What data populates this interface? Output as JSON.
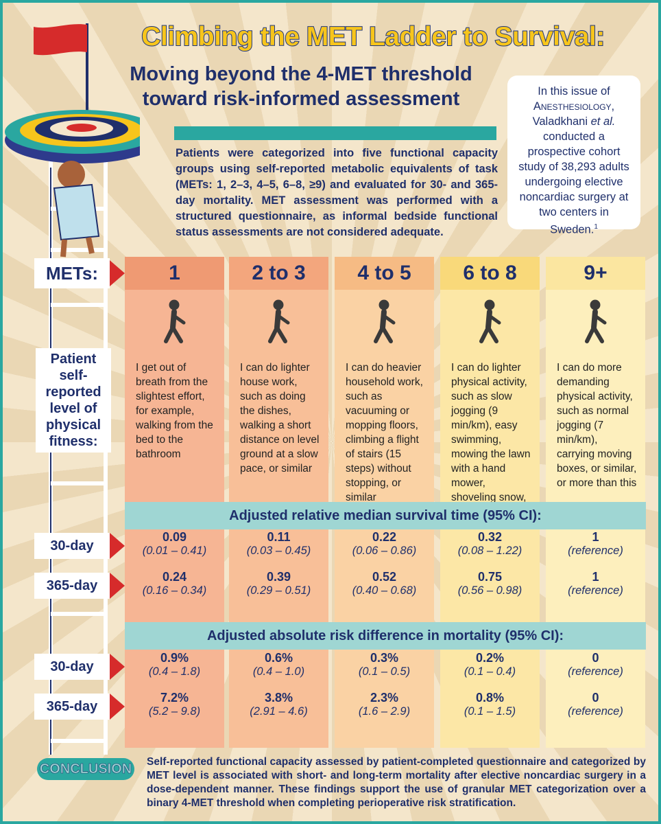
{
  "header": {
    "title": "Climbing the MET Ladder to Survival:",
    "subtitle": [
      "Moving beyond the 4-MET threshold",
      "toward risk-informed assessment"
    ]
  },
  "sidebar": {
    "parts": [
      "In this issue of ",
      "Anesthesiology",
      ", Valadkhani ",
      "et al.",
      " conducted a prospective cohort study of 38,293 adults undergoing elective noncardiac surgery at two centers in Sweden.",
      "1"
    ]
  },
  "intro": "Patients were categorized into five functional capacity groups using self-reported metabolic equivalents of task (METs: 1, 2–3, 4–5, 6–8, ≥9) and evaluated for 30- and 365-day mortality. MET assessment was performed with a structured questionnaire, as informal bedside functional status assessments are not considered adequate.",
  "row_labels": {
    "mets": "METs:",
    "fitness": "Patient self-reported level of physical fitness:"
  },
  "columns": [
    {
      "mets": "1",
      "description": "I get out of breath from the slightest effort, for example, walking from the bed to the bathroom"
    },
    {
      "mets": "2 to 3",
      "description": "I can do lighter house work, such as doing the dishes, walking a short distance on level ground at a slow pace, or similar"
    },
    {
      "mets": "4 to 5",
      "description": "I can do heavier household work, such as vacuuming or mopping floors, climbing a flight of stairs (15 steps) without stopping, or similar"
    },
    {
      "mets": "6 to 8",
      "description": "I can do lighter physical activity, such as slow jogging (9 min/km), easy swimming, mowing the lawn with a hand mower, shoveling snow, or similar"
    },
    {
      "mets": "9+",
      "description": "I can do more demanding physical activity, such as normal jogging (7 min/km), carrying moving boxes, or similar, or more than this"
    }
  ],
  "survival": {
    "heading": "Adjusted relative median survival time (95% CI):",
    "rows": [
      {
        "label": "30-day",
        "cells": [
          {
            "value": "0.09",
            "ci": "(0.01 – 0.41)"
          },
          {
            "value": "0.11",
            "ci": "(0.03 – 0.45)"
          },
          {
            "value": "0.22",
            "ci": "(0.06 – 0.86)"
          },
          {
            "value": "0.32",
            "ci": "(0.08 – 1.22)"
          },
          {
            "value": "1",
            "ci": "(reference)"
          }
        ]
      },
      {
        "label": "365-day",
        "cells": [
          {
            "value": "0.24",
            "ci": "(0.16 – 0.34)"
          },
          {
            "value": "0.39",
            "ci": "(0.29 – 0.51)"
          },
          {
            "value": "0.52",
            "ci": "(0.40 – 0.68)"
          },
          {
            "value": "0.75",
            "ci": "(0.56 – 0.98)"
          },
          {
            "value": "1",
            "ci": "(reference)"
          }
        ]
      }
    ]
  },
  "risk": {
    "heading": "Adjusted absolute risk difference in mortality (95% CI):",
    "rows": [
      {
        "label": "30-day",
        "cells": [
          {
            "value": "0.9%",
            "ci": "(0.4 – 1.8)"
          },
          {
            "value": "0.6%",
            "ci": "(0.4 – 1.0)"
          },
          {
            "value": "0.3%",
            "ci": "(0.1 – 0.5)"
          },
          {
            "value": "0.2%",
            "ci": "(0.1 – 0.4)"
          },
          {
            "value": "0",
            "ci": "(reference)"
          }
        ]
      },
      {
        "label": "365-day",
        "cells": [
          {
            "value": "7.2%",
            "ci": "(5.2 – 9.8)"
          },
          {
            "value": "3.8%",
            "ci": "(2.91 – 4.6)"
          },
          {
            "value": "2.3%",
            "ci": "(1.6 – 2.9)"
          },
          {
            "value": "0.8%",
            "ci": "(0.1 – 1.5)"
          },
          {
            "value": "0",
            "ci": "(reference)"
          }
        ]
      }
    ]
  },
  "conclusion": {
    "label": "CONCLUSION",
    "text": "Self-reported functional capacity assessed by patient-completed questionnaire and categorized by MET level is associated with short- and long-term mortality after elective noncardiac surgery in a dose-dependent manner. These findings support the use of granular MET categorization over a binary 4-MET threshold when completing perioperative risk stratification."
  }
}
